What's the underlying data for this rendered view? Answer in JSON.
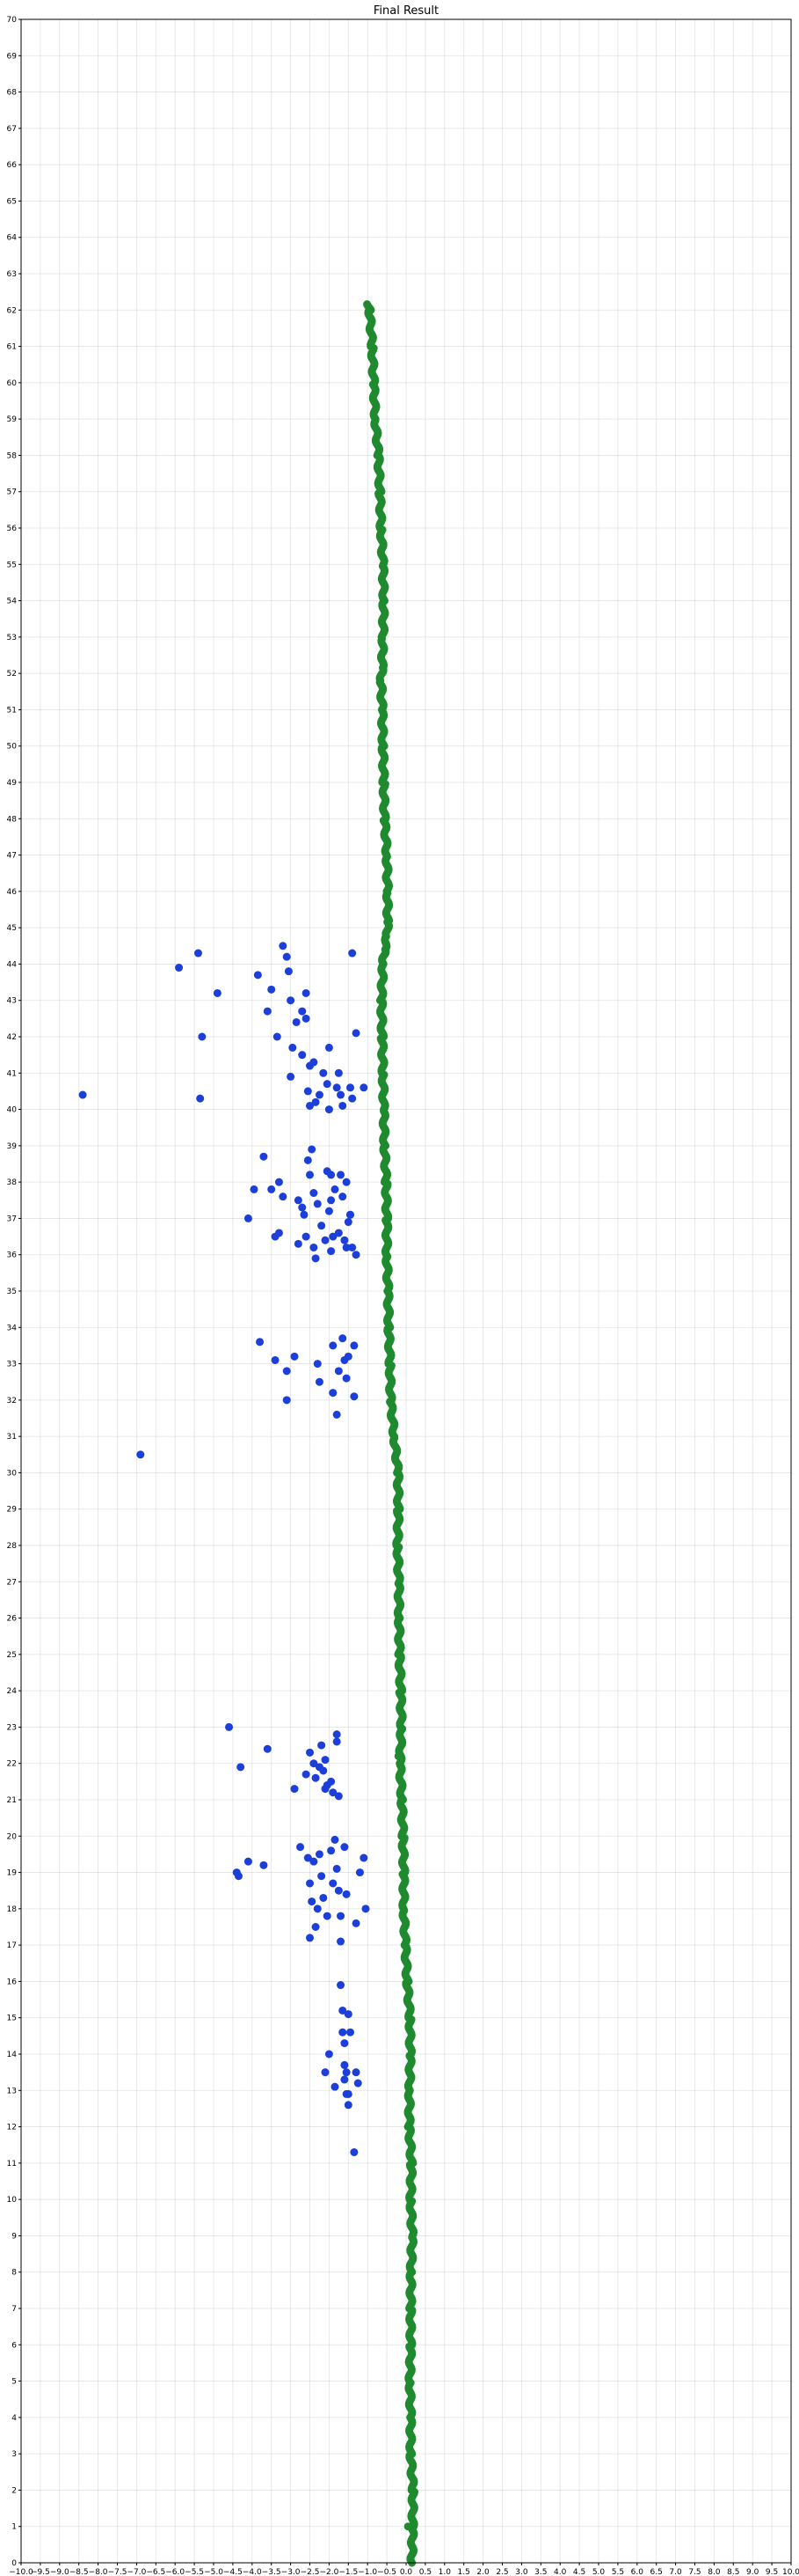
{
  "chart_data": {
    "type": "scatter",
    "title": "Final Result",
    "xlabel": "",
    "ylabel": "",
    "xlim": [
      -10.0,
      10.0
    ],
    "ylim": [
      0,
      70
    ],
    "grid": true,
    "x_tick_labels": [
      "−10.0",
      "−9.5",
      "−9.0",
      "−8.5",
      "−8.0",
      "−7.5",
      "−7.0",
      "−6.5",
      "−6.0",
      "−5.5",
      "−5.0",
      "−4.5",
      "−4.0",
      "−3.5",
      "−3.0",
      "−2.5",
      "−2.0",
      "−1.5",
      "−1.0",
      "−0.5",
      "0.0",
      "0.5",
      "1.0",
      "1.5",
      "2.0",
      "2.5",
      "3.0",
      "3.5",
      "4.0",
      "4.5",
      "5.0",
      "5.5",
      "6.0",
      "6.5",
      "7.0",
      "7.5",
      "8.0",
      "8.5",
      "9.0",
      "9.5",
      "10.0"
    ],
    "y_tick_labels": [
      "0",
      "1",
      "2",
      "3",
      "4",
      "5",
      "6",
      "7",
      "8",
      "9",
      "10",
      "11",
      "12",
      "13",
      "14",
      "15",
      "16",
      "17",
      "18",
      "19",
      "20",
      "21",
      "22",
      "23",
      "24",
      "25",
      "26",
      "27",
      "28",
      "29",
      "30",
      "31",
      "32",
      "33",
      "34",
      "35",
      "36",
      "37",
      "38",
      "39",
      "40",
      "41",
      "42",
      "43",
      "44",
      "45",
      "46",
      "47",
      "48",
      "49",
      "50",
      "51",
      "52",
      "53",
      "54",
      "55",
      "56",
      "57",
      "58",
      "59",
      "60",
      "61",
      "62",
      "63",
      "64",
      "65",
      "66",
      "67",
      "68",
      "69",
      "70"
    ],
    "series": [
      {
        "color": "#1f8a2e",
        "marker_size": 4.5,
        "path": [
          [
            0.15,
            0
          ],
          [
            0.17,
            1
          ],
          [
            0.18,
            2
          ],
          [
            0.12,
            3
          ],
          [
            0.12,
            4
          ],
          [
            0.1,
            5
          ],
          [
            0.12,
            6
          ],
          [
            0.12,
            7
          ],
          [
            0.13,
            8
          ],
          [
            0.16,
            9
          ],
          [
            0.12,
            10
          ],
          [
            0.14,
            11
          ],
          [
            0.08,
            12
          ],
          [
            0.09,
            13
          ],
          [
            0.11,
            14
          ],
          [
            0.1,
            15
          ],
          [
            0.03,
            16
          ],
          [
            -0.02,
            17
          ],
          [
            -0.06,
            18
          ],
          [
            -0.06,
            19
          ],
          [
            -0.08,
            20
          ],
          [
            -0.11,
            21
          ],
          [
            -0.16,
            22
          ],
          [
            -0.12,
            23
          ],
          [
            -0.14,
            24
          ],
          [
            -0.17,
            25
          ],
          [
            -0.18,
            26
          ],
          [
            -0.19,
            27
          ],
          [
            -0.22,
            28
          ],
          [
            -0.2,
            29
          ],
          [
            -0.21,
            30
          ],
          [
            -0.31,
            31
          ],
          [
            -0.4,
            32
          ],
          [
            -0.42,
            33
          ],
          [
            -0.45,
            34
          ],
          [
            -0.47,
            35
          ],
          [
            -0.5,
            36
          ],
          [
            -0.5,
            37
          ],
          [
            -0.52,
            38
          ],
          [
            -0.56,
            39
          ],
          [
            -0.58,
            40
          ],
          [
            -0.6,
            41
          ],
          [
            -0.62,
            42
          ],
          [
            -0.64,
            43
          ],
          [
            -0.6,
            44
          ],
          [
            -0.56,
            44.4
          ],
          [
            -0.49,
            44.8
          ],
          [
            -0.48,
            45.2
          ],
          [
            -0.48,
            46
          ],
          [
            -0.5,
            47
          ],
          [
            -0.56,
            48
          ],
          [
            -0.58,
            49
          ],
          [
            -0.6,
            50
          ],
          [
            -0.62,
            51
          ],
          [
            -0.65,
            51.8
          ],
          [
            -0.62,
            52.2
          ],
          [
            -0.6,
            53
          ],
          [
            -0.58,
            54
          ],
          [
            -0.6,
            55
          ],
          [
            -0.65,
            56
          ],
          [
            -0.68,
            57
          ],
          [
            -0.72,
            58
          ],
          [
            -0.8,
            59
          ],
          [
            -0.84,
            60
          ],
          [
            -0.88,
            61
          ],
          [
            -0.95,
            62
          ],
          [
            -0.98,
            62.2
          ]
        ],
        "points": [
          [
            -0.2,
            22.2
          ],
          [
            0.05,
            1.0
          ]
        ]
      },
      {
        "color": "#1b3fd8",
        "marker_size": 4.5,
        "points": [
          [
            -8.4,
            40.4
          ],
          [
            -6.9,
            30.5
          ],
          [
            -5.9,
            43.9
          ],
          [
            -5.4,
            44.3
          ],
          [
            -5.3,
            42.0
          ],
          [
            -5.35,
            40.3
          ],
          [
            -4.9,
            43.2
          ],
          [
            -4.6,
            23.0
          ],
          [
            -4.3,
            21.9
          ],
          [
            -4.35,
            18.9
          ],
          [
            -4.4,
            19.0
          ],
          [
            -4.1,
            19.3
          ],
          [
            -4.1,
            37.0
          ],
          [
            -3.95,
            37.8
          ],
          [
            -3.85,
            43.7
          ],
          [
            -3.8,
            33.6
          ],
          [
            -3.7,
            38.7
          ],
          [
            -3.7,
            19.2
          ],
          [
            -3.6,
            22.4
          ],
          [
            -3.5,
            43.3
          ],
          [
            -3.6,
            42.7
          ],
          [
            -3.5,
            37.8
          ],
          [
            -3.4,
            33.1
          ],
          [
            -3.4,
            36.5
          ],
          [
            -3.3,
            36.6
          ],
          [
            -3.35,
            42.0
          ],
          [
            -3.3,
            38.0
          ],
          [
            -3.2,
            37.6
          ],
          [
            -3.2,
            44.5
          ],
          [
            -3.1,
            44.2
          ],
          [
            -3.1,
            32.0
          ],
          [
            -3.1,
            32.8
          ],
          [
            -3.05,
            43.8
          ],
          [
            -3.0,
            43.0
          ],
          [
            -2.95,
            41.7
          ],
          [
            -3.0,
            40.9
          ],
          [
            -2.9,
            21.3
          ],
          [
            -2.9,
            33.2
          ],
          [
            -2.85,
            42.4
          ],
          [
            -2.8,
            37.5
          ],
          [
            -2.8,
            36.3
          ],
          [
            -2.75,
            19.7
          ],
          [
            -2.7,
            42.7
          ],
          [
            -2.7,
            41.5
          ],
          [
            -2.6,
            42.5
          ],
          [
            -2.6,
            43.2
          ],
          [
            -2.55,
            40.5
          ],
          [
            -2.5,
            41.2
          ],
          [
            -2.5,
            38.2
          ],
          [
            -2.45,
            38.9
          ],
          [
            -2.4,
            37.7
          ],
          [
            -2.4,
            36.2
          ],
          [
            -2.35,
            35.9
          ],
          [
            -2.3,
            33.0
          ],
          [
            -2.25,
            32.5
          ],
          [
            -2.2,
            22.5
          ],
          [
            -2.15,
            21.8
          ],
          [
            -2.1,
            22.1
          ],
          [
            -2.1,
            21.3
          ],
          [
            -2.05,
            40.7
          ],
          [
            -2.0,
            41.7
          ],
          [
            -2.0,
            40.0
          ],
          [
            -2.0,
            37.2
          ],
          [
            -1.95,
            38.2
          ],
          [
            -1.95,
            37.5
          ],
          [
            -1.9,
            36.5
          ],
          [
            -1.9,
            33.5
          ],
          [
            -1.9,
            32.2
          ],
          [
            -1.85,
            19.9
          ],
          [
            -1.8,
            19.1
          ],
          [
            -1.8,
            22.8
          ],
          [
            -1.8,
            22.6
          ],
          [
            -1.75,
            18.5
          ],
          [
            -1.7,
            17.8
          ],
          [
            -1.7,
            17.1
          ],
          [
            -1.7,
            15.9
          ],
          [
            -1.65,
            15.2
          ],
          [
            -1.65,
            14.6
          ],
          [
            -1.6,
            13.7
          ],
          [
            -1.6,
            13.3
          ],
          [
            -1.55,
            13.5
          ],
          [
            -1.5,
            12.9
          ],
          [
            -1.5,
            12.6
          ],
          [
            -1.45,
            40.6
          ],
          [
            -1.4,
            40.3
          ],
          [
            -1.45,
            37.1
          ],
          [
            -1.4,
            36.2
          ],
          [
            -1.35,
            33.5
          ],
          [
            -1.35,
            32.1
          ],
          [
            -1.3,
            36.0
          ],
          [
            -1.3,
            42.1
          ],
          [
            -1.4,
            44.3
          ],
          [
            -1.1,
            40.6
          ],
          [
            -1.05,
            18.0
          ],
          [
            -1.1,
            19.4
          ],
          [
            -1.2,
            19.0
          ],
          [
            -1.3,
            17.6
          ],
          [
            -1.35,
            11.3
          ],
          [
            -1.3,
            13.5
          ],
          [
            -1.25,
            13.2
          ],
          [
            -2.2,
            36.8
          ],
          [
            -2.3,
            37.4
          ],
          [
            -2.6,
            36.5
          ],
          [
            -2.65,
            37.1
          ],
          [
            -2.1,
            36.4
          ],
          [
            -2.15,
            41.0
          ],
          [
            -2.25,
            40.4
          ],
          [
            -2.35,
            40.2
          ],
          [
            -1.8,
            40.6
          ],
          [
            -1.75,
            41.0
          ],
          [
            -1.7,
            40.4
          ],
          [
            -1.65,
            40.1
          ],
          [
            -2.5,
            40.1
          ],
          [
            -2.4,
            41.3
          ],
          [
            -2.7,
            37.3
          ],
          [
            -2.55,
            38.6
          ],
          [
            -2.05,
            38.3
          ],
          [
            -1.85,
            37.8
          ],
          [
            -1.7,
            38.2
          ],
          [
            -1.65,
            37.6
          ],
          [
            -1.75,
            36.6
          ],
          [
            -1.6,
            36.4
          ],
          [
            -1.55,
            36.2
          ],
          [
            -1.5,
            36.9
          ],
          [
            -1.45,
            37.1
          ],
          [
            -1.95,
            36.1
          ],
          [
            -1.6,
            33.1
          ],
          [
            -1.55,
            32.6
          ],
          [
            -1.5,
            33.2
          ],
          [
            -1.75,
            32.8
          ],
          [
            -1.8,
            31.6
          ],
          [
            -1.65,
            33.7
          ],
          [
            -1.55,
            38.0
          ],
          [
            -2.4,
            22.0
          ],
          [
            -2.35,
            21.6
          ],
          [
            -2.25,
            21.9
          ],
          [
            -2.5,
            22.3
          ],
          [
            -2.6,
            21.7
          ],
          [
            -2.05,
            21.4
          ],
          [
            -1.95,
            21.5
          ],
          [
            -1.9,
            21.2
          ],
          [
            -1.75,
            21.1
          ],
          [
            -2.5,
            18.7
          ],
          [
            -2.45,
            18.2
          ],
          [
            -2.3,
            18.0
          ],
          [
            -2.35,
            17.5
          ],
          [
            -2.4,
            19.3
          ],
          [
            -2.25,
            19.5
          ],
          [
            -2.2,
            18.9
          ],
          [
            -2.55,
            19.4
          ],
          [
            -1.6,
            19.7
          ],
          [
            -1.55,
            18.4
          ],
          [
            -1.95,
            19.6
          ],
          [
            -1.9,
            18.7
          ],
          [
            -2.15,
            18.3
          ],
          [
            -2.05,
            17.8
          ],
          [
            -2.5,
            17.2
          ],
          [
            -1.5,
            15.1
          ],
          [
            -1.45,
            14.6
          ],
          [
            -1.6,
            14.3
          ],
          [
            -1.55,
            12.9
          ],
          [
            -2.0,
            14.0
          ],
          [
            -1.85,
            13.1
          ],
          [
            -2.1,
            13.5
          ]
        ]
      }
    ]
  }
}
